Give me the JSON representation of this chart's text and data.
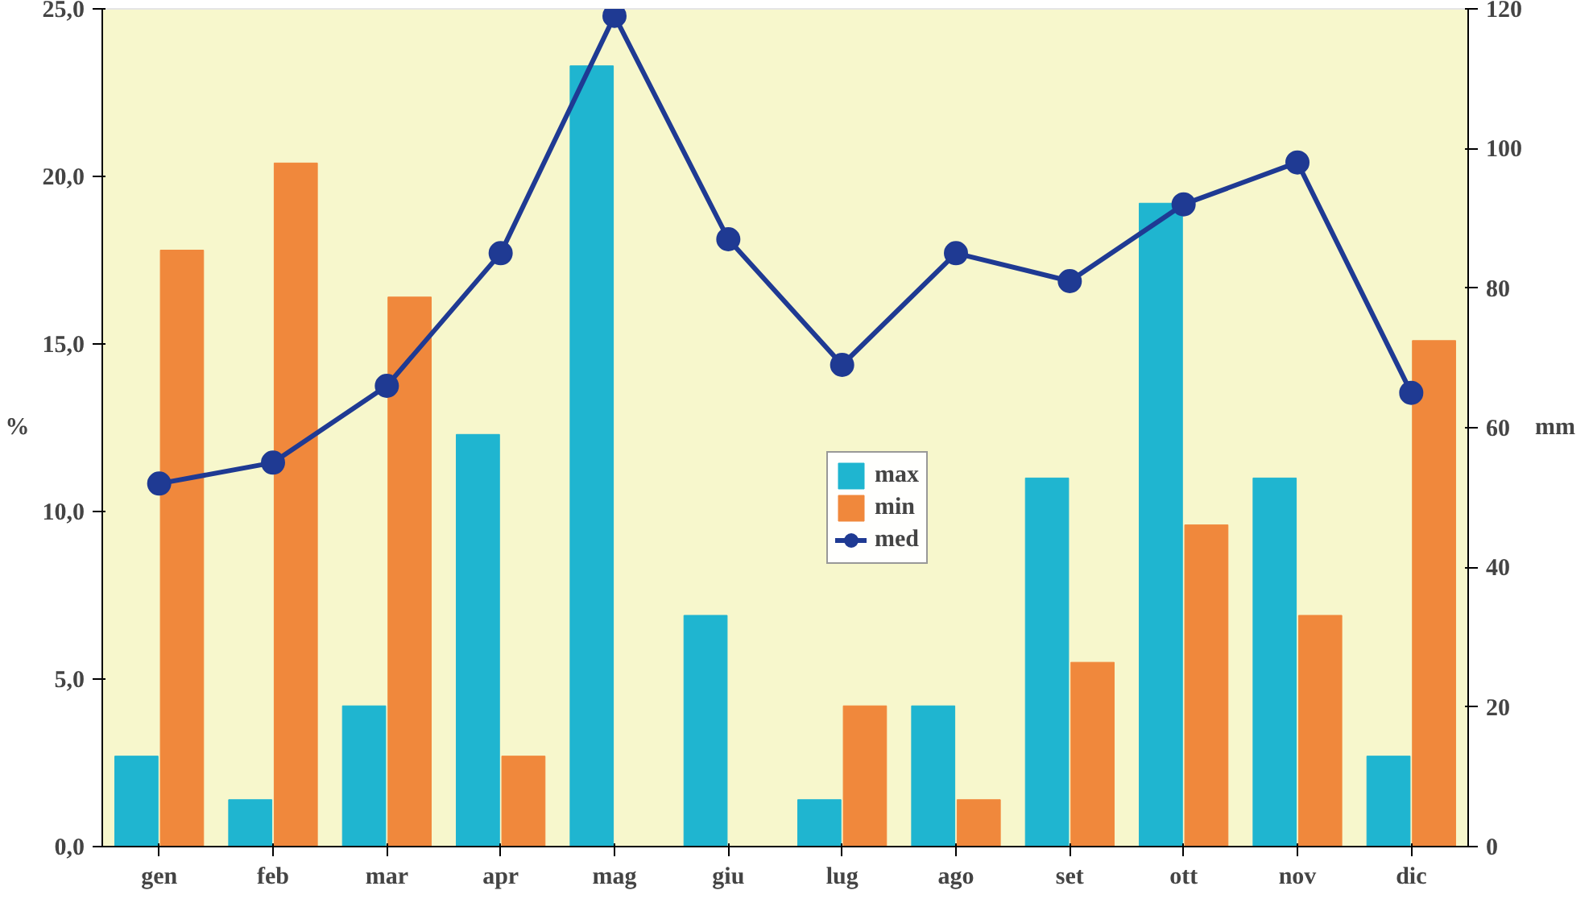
{
  "chart_data": {
    "type": "bar",
    "categories": [
      "gen",
      "feb",
      "mar",
      "apr",
      "mag",
      "giu",
      "lug",
      "ago",
      "set",
      "ott",
      "nov",
      "dic"
    ],
    "ylabel": "%",
    "y2label": "mm",
    "series": [
      {
        "name": "max",
        "color": "#1fb5d0",
        "values": [
          2.7,
          1.4,
          4.2,
          12.3,
          23.3,
          6.9,
          1.4,
          4.2,
          11.0,
          19.2,
          11.0,
          2.7
        ]
      },
      {
        "name": "min",
        "color": "#f0883c",
        "values": [
          17.8,
          20.4,
          16.4,
          2.7,
          0,
          0,
          4.2,
          1.4,
          5.5,
          9.6,
          6.9,
          15.1
        ]
      },
      {
        "name": "med",
        "type": "line",
        "axis": "y2",
        "color": "#1f3a93",
        "marker": "circle",
        "line_style": "solid",
        "values": [
          52,
          55,
          66,
          85,
          119,
          87,
          69,
          85,
          81,
          92,
          98,
          65
        ]
      }
    ],
    "ylim": [
      0,
      25
    ],
    "yticks": [
      {
        "value": 0,
        "label": "0,0"
      },
      {
        "value": 5,
        "label": "5,0"
      },
      {
        "value": 10,
        "label": "10,0"
      },
      {
        "value": 15,
        "label": "15,0"
      },
      {
        "value": 20,
        "label": "20,0"
      },
      {
        "value": 25,
        "label": "25,0"
      }
    ],
    "y2lim": [
      0,
      120
    ],
    "y2ticks": [
      0,
      20,
      40,
      60,
      80,
      100,
      120
    ],
    "grid": false,
    "legend": "center"
  }
}
